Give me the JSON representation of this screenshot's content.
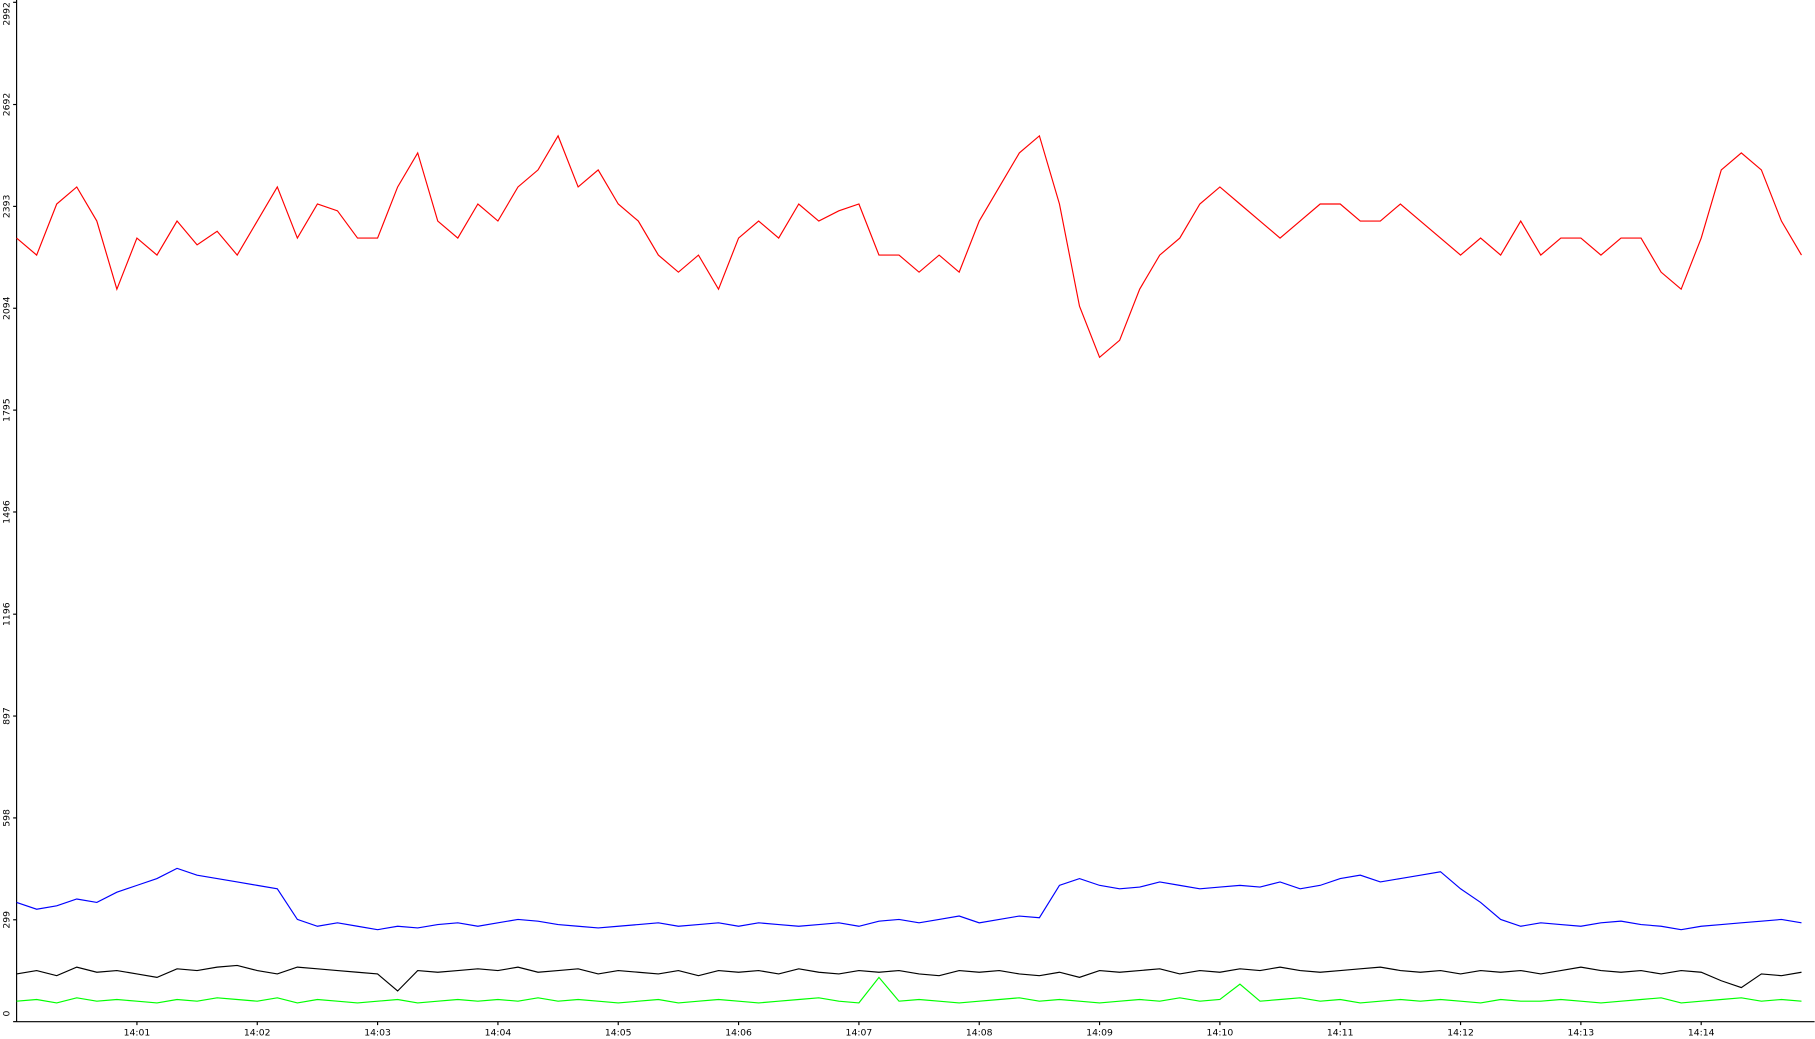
{
  "chart_data": {
    "type": "line",
    "categories": [
      null,
      null,
      null,
      null,
      null,
      null,
      "14:01",
      null,
      null,
      null,
      null,
      null,
      "14:02",
      null,
      null,
      null,
      null,
      null,
      "14:03",
      null,
      null,
      null,
      null,
      null,
      "14:04",
      null,
      null,
      null,
      null,
      null,
      "14:05",
      null,
      null,
      null,
      null,
      null,
      "14:06",
      null,
      null,
      null,
      null,
      null,
      "14:07",
      null,
      null,
      null,
      null,
      null,
      "14:08",
      null,
      null,
      null,
      null,
      null,
      "14:09",
      null,
      null,
      null,
      null,
      null,
      "14:10",
      null,
      null,
      null,
      null,
      null,
      "14:11",
      null,
      null,
      null,
      null,
      null,
      "14:12",
      null,
      null,
      null,
      null,
      null,
      "14:13",
      null,
      null,
      null,
      null,
      null,
      "14:14",
      null,
      null,
      null,
      null,
      null
    ],
    "series": [
      {
        "color": "#ff0000",
        "values": [
          2300,
          2250,
          2400,
          2450,
          2350,
          2150,
          2300,
          2250,
          2350,
          2280,
          2320,
          2250,
          2350,
          2450,
          2300,
          2400,
          2380,
          2300,
          2300,
          2450,
          2550,
          2350,
          2300,
          2400,
          2350,
          2450,
          2500,
          2600,
          2450,
          2500,
          2400,
          2350,
          2250,
          2200,
          2250,
          2150,
          2300,
          2350,
          2300,
          2400,
          2350,
          2380,
          2400,
          2250,
          2250,
          2200,
          2250,
          2200,
          2350,
          2450,
          2550,
          2600,
          2400,
          2100,
          1950,
          2000,
          2150,
          2250,
          2300,
          2400,
          2450,
          2400,
          2350,
          2300,
          2350,
          2400,
          2400,
          2350,
          2350,
          2400,
          2350,
          2300,
          2250,
          2300,
          2250,
          2350,
          2250,
          2300,
          2300,
          2250,
          2300,
          2300,
          2200,
          2150,
          2300,
          2500,
          2550,
          2500,
          2350,
          2250
        ]
      },
      {
        "color": "#0000ff",
        "values": [
          350,
          330,
          340,
          360,
          350,
          380,
          400,
          420,
          450,
          430,
          420,
          410,
          400,
          390,
          300,
          280,
          290,
          280,
          270,
          280,
          275,
          285,
          290,
          280,
          290,
          300,
          295,
          285,
          280,
          275,
          280,
          285,
          290,
          280,
          285,
          290,
          280,
          290,
          285,
          280,
          285,
          290,
          280,
          295,
          300,
          290,
          300,
          310,
          290,
          300,
          310,
          305,
          400,
          420,
          400,
          390,
          395,
          410,
          400,
          390,
          395,
          400,
          395,
          410,
          390,
          400,
          420,
          430,
          410,
          420,
          430,
          440,
          390,
          350,
          300,
          280,
          290,
          285,
          280,
          290,
          295,
          285,
          280,
          270,
          280,
          285,
          290,
          295,
          300,
          290
        ]
      },
      {
        "color": "#000000",
        "values": [
          140,
          150,
          135,
          160,
          145,
          150,
          140,
          130,
          155,
          150,
          160,
          165,
          150,
          140,
          160,
          155,
          150,
          145,
          140,
          90,
          150,
          145,
          150,
          155,
          150,
          160,
          145,
          150,
          155,
          140,
          150,
          145,
          140,
          150,
          135,
          150,
          145,
          150,
          140,
          155,
          145,
          140,
          150,
          145,
          150,
          140,
          135,
          150,
          145,
          150,
          140,
          135,
          145,
          130,
          150,
          145,
          150,
          155,
          140,
          150,
          145,
          155,
          150,
          160,
          150,
          145,
          150,
          155,
          160,
          150,
          145,
          150,
          140,
          150,
          145,
          150,
          140,
          150,
          160,
          150,
          145,
          150,
          140,
          150,
          145,
          120,
          100,
          140,
          135,
          145
        ]
      },
      {
        "color": "#00ff00",
        "values": [
          60,
          65,
          55,
          70,
          60,
          65,
          60,
          55,
          65,
          60,
          70,
          65,
          60,
          70,
          55,
          65,
          60,
          55,
          60,
          65,
          55,
          60,
          65,
          60,
          65,
          60,
          70,
          60,
          65,
          60,
          55,
          60,
          65,
          55,
          60,
          65,
          60,
          55,
          60,
          65,
          70,
          60,
          55,
          130,
          60,
          65,
          60,
          55,
          60,
          65,
          70,
          60,
          65,
          60,
          55,
          60,
          65,
          60,
          70,
          60,
          65,
          110,
          60,
          65,
          70,
          60,
          65,
          55,
          60,
          65,
          60,
          65,
          60,
          55,
          65,
          60,
          60,
          65,
          60,
          55,
          60,
          65,
          70,
          55,
          60,
          65,
          70,
          60,
          65,
          60
        ]
      }
    ],
    "ylim": [
      0,
      2992
    ],
    "yticks": [
      0,
      299,
      598,
      897,
      1196,
      1496,
      1795,
      2094,
      2393,
      2692,
      2992
    ]
  }
}
